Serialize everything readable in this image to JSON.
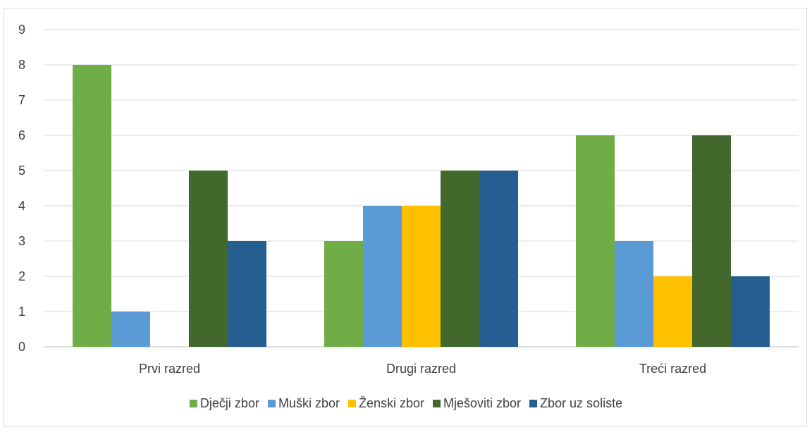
{
  "chart_data": {
    "type": "bar",
    "title": "",
    "xlabel": "",
    "ylabel": "",
    "ylim": [
      0,
      9
    ],
    "yticks": [
      0,
      1,
      2,
      3,
      4,
      5,
      6,
      7,
      8,
      9
    ],
    "grid": true,
    "legend_position": "bottom",
    "categories": [
      "Prvi razred",
      "Drugi razred",
      "Treći razred"
    ],
    "series": [
      {
        "name": "Dječji zbor",
        "color": "#70ad47",
        "values": [
          8,
          3,
          6
        ]
      },
      {
        "name": "Muški zbor",
        "color": "#5b9bd5",
        "values": [
          1,
          4,
          3
        ]
      },
      {
        "name": "Ženski zbor",
        "color": "#ffc000",
        "values": [
          0,
          4,
          2
        ]
      },
      {
        "name": "Mješoviti zbor",
        "color": "#43682b",
        "values": [
          5,
          5,
          6
        ]
      },
      {
        "name": "Zbor uz soliste",
        "color": "#255e91",
        "values": [
          3,
          5,
          2
        ]
      }
    ]
  }
}
